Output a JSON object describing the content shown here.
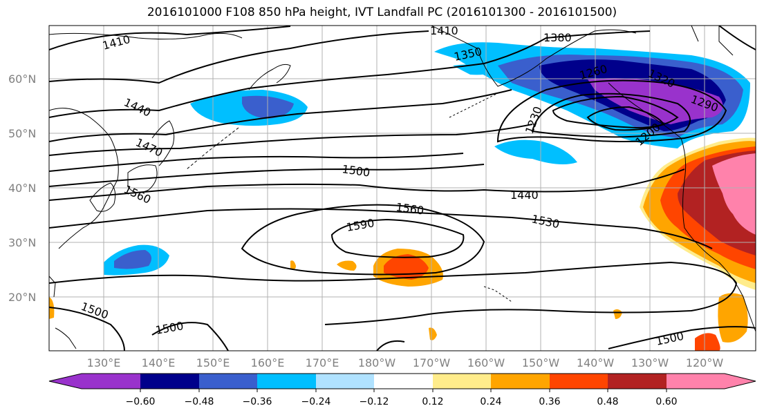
{
  "title": "2016101000 F108 850 hPa height, IVT Landfall PC (2016101300 - 2016101500)",
  "colors": {
    "shading_levels": [
      "#9932CC",
      "#00008B",
      "#3A5FCD",
      "#00BFFF",
      "#B0E2FF",
      "#FFFFFF",
      "#FFEC8B",
      "#FFA500",
      "#FF4500",
      "#B22222",
      "#FF82AB"
    ],
    "contour": "#000000",
    "grid": "#b0b0b0",
    "coast": "#000000",
    "axis_label": "#808080"
  },
  "latitude_labels": [
    "20°N",
    "30°N",
    "40°N",
    "50°N",
    "60°N"
  ],
  "longitude_labels": [
    "130°E",
    "140°E",
    "150°E",
    "160°E",
    "170°E",
    "180°W",
    "170°W",
    "160°W",
    "150°W",
    "140°W",
    "130°W",
    "120°W"
  ],
  "colorbar": {
    "tick_labels": [
      "−0.60",
      "−0.48",
      "−0.36",
      "−0.24",
      "−0.12",
      "0.12",
      "0.24",
      "0.36",
      "0.48",
      "0.60"
    ],
    "extend": "both"
  },
  "contour_labels": {
    "c1410a": "1410",
    "c1410b": "1410",
    "c1380": "1380",
    "c1350": "1350",
    "c1440a": "1440",
    "c1470": "1470",
    "c1500a": "1500",
    "c1560a": "1560",
    "c1440b": "1440",
    "c1560b": "1560",
    "c1590": "1590",
    "c1530": "1530",
    "c1500b": "1500",
    "c1500c": "1500",
    "c1500d": "1500",
    "c1320": "1320",
    "c1290": "1290",
    "c1260": "1260",
    "c1230": "1230",
    "c1200": "1200"
  }
}
